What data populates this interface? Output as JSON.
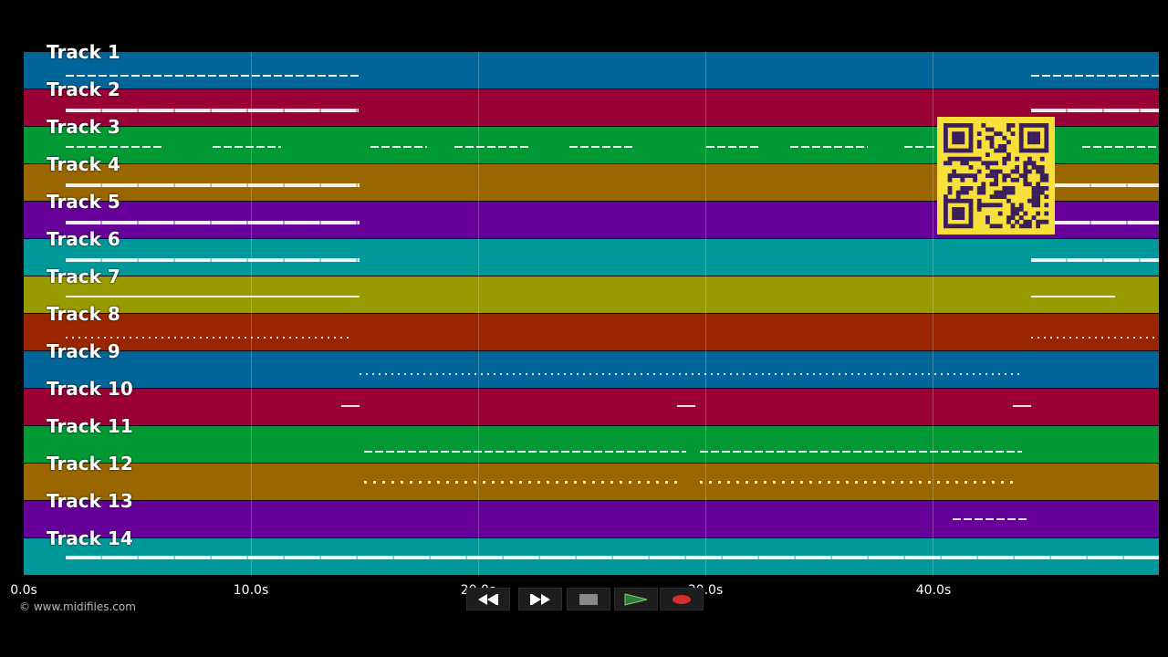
{
  "tracks": [
    {
      "label": "Track 1",
      "color": "#006699"
    },
    {
      "label": "Track 2",
      "color": "#990033"
    },
    {
      "label": "Track 3",
      "color": "#009933"
    },
    {
      "label": "Track 4",
      "color": "#996600"
    },
    {
      "label": "Track 5",
      "color": "#660099"
    },
    {
      "label": "Track 6",
      "color": "#009999"
    },
    {
      "label": "Track 7",
      "color": "#999900"
    },
    {
      "label": "Track 8",
      "color": "#992600"
    },
    {
      "label": "Track 9",
      "color": "#006699"
    },
    {
      "label": "Track 10",
      "color": "#990033"
    },
    {
      "label": "Track 11",
      "color": "#009933"
    },
    {
      "label": "Track 12",
      "color": "#996600"
    },
    {
      "label": "Track 13",
      "color": "#660099"
    },
    {
      "label": "Track 14",
      "color": "#009999"
    }
  ],
  "timeline": {
    "ticks": [
      "0.0s",
      "10.0s",
      "20.0s",
      "30.0s",
      "40.0s"
    ]
  },
  "copyright": "© www.midifiles.com",
  "transport": {
    "rewind_icon": "rewind-icon",
    "fast_forward_icon": "fast-forward-icon",
    "stop_icon": "stop-icon",
    "play_icon": "play-icon",
    "record_icon": "record-icon",
    "play_color": "#2e7d32",
    "record_color": "#d32f2f"
  },
  "overlay": {
    "qr_color": "#f7e03a",
    "qr_module_color": "#3b1f5a"
  }
}
